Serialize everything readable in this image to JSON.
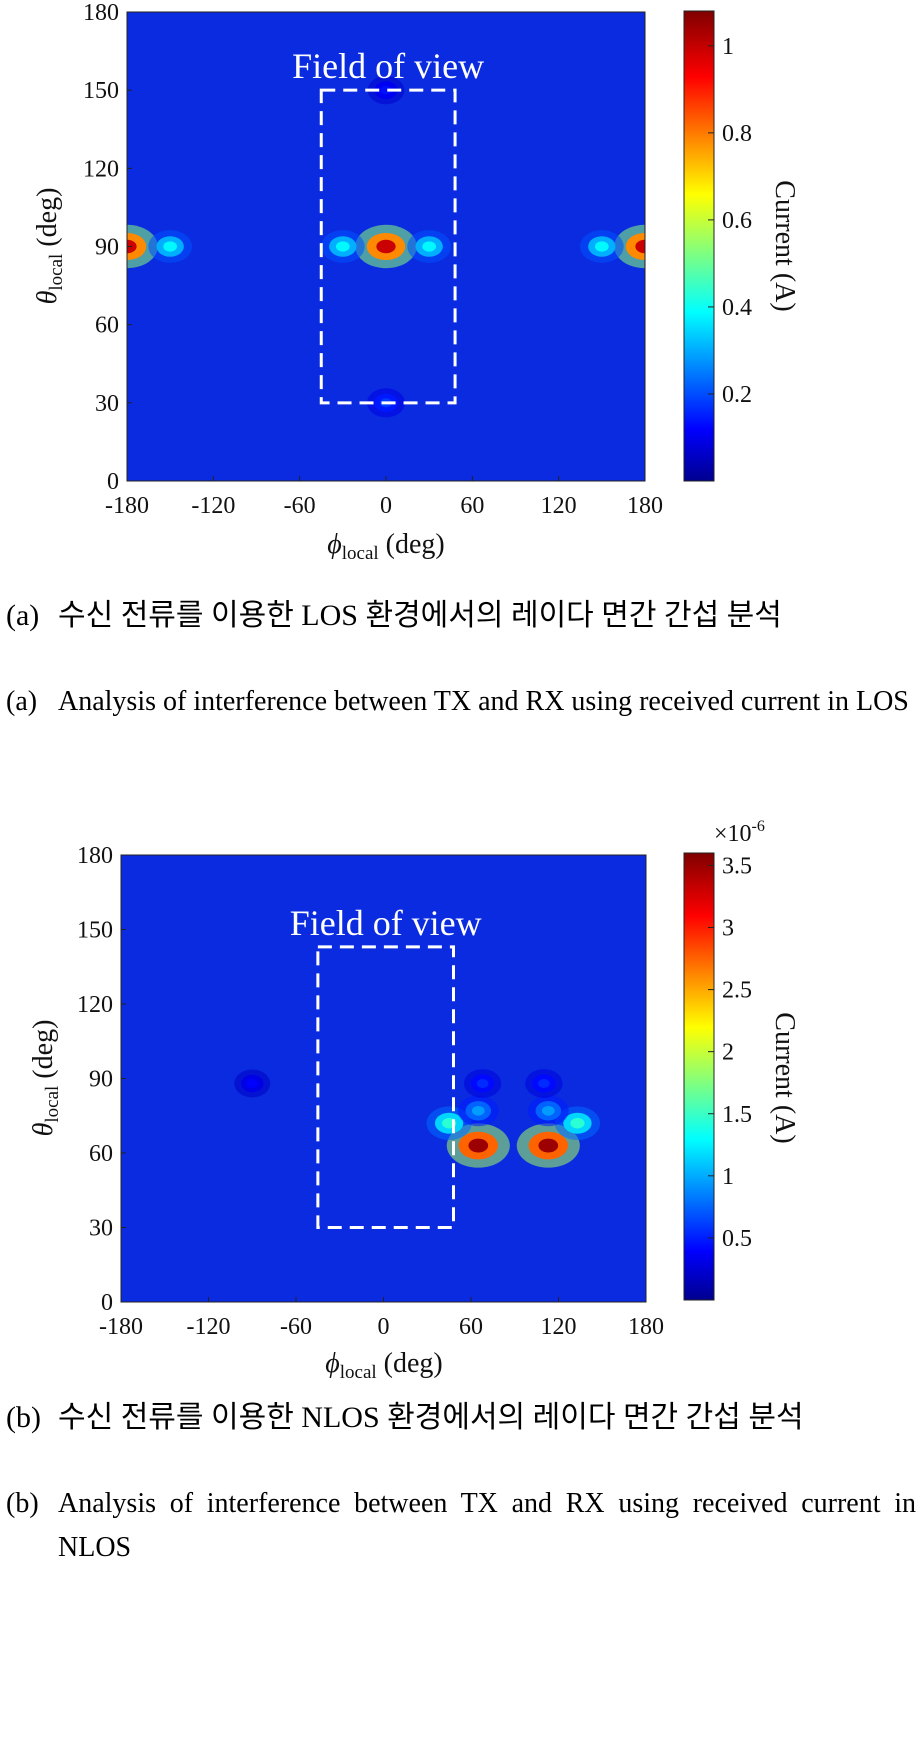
{
  "figures": [
    {
      "id": "a",
      "field_of_view_label": "Field of view",
      "colorbar": {
        "label": "Current (A)",
        "exponent_label": "",
        "ticks": [
          "0.2",
          "0.4",
          "0.6",
          "0.8",
          "1"
        ],
        "min": 0,
        "max": 1.08
      },
      "caption_label": "(a)",
      "caption_ko": "수신 전류를 이용한 LOS 환경에서의 레이다 면간 간섭 분석",
      "caption_en": "Analysis of interference between TX and RX using received current in LOS"
    },
    {
      "id": "b",
      "field_of_view_label": "Field of view",
      "colorbar": {
        "label": "Current (A)",
        "exponent_label": "×10-6",
        "ticks": [
          "0.5",
          "1",
          "1.5",
          "2",
          "2.5",
          "3",
          "3.5"
        ],
        "min": 0,
        "max": 3.6
      },
      "caption_label": "(b)",
      "caption_ko": "수신 전류를 이용한 NLOS 환경에서의 레이다 면간 간섭 분석",
      "caption_en": "Analysis of interference between TX and RX using received current in NLOS"
    }
  ],
  "chart_data": [
    {
      "type": "heatmap",
      "xlabel": "φlocal (deg)",
      "ylabel": "θlocal (deg)",
      "xlim": [
        -180,
        180
      ],
      "ylim": [
        0,
        180
      ],
      "xticks": [
        -180,
        -120,
        -60,
        0,
        60,
        120,
        180
      ],
      "yticks": [
        0,
        30,
        60,
        90,
        120,
        150,
        180
      ],
      "colorbar_label": "Current (A)",
      "color_range": [
        0,
        1.08
      ],
      "field_of_view": {
        "phi": [
          -45,
          48
        ],
        "theta": [
          30,
          150
        ],
        "label": "Field of view"
      },
      "hotspots": [
        {
          "phi": 0,
          "theta": 90,
          "current": 1.0
        },
        {
          "phi": -180,
          "theta": 90,
          "current": 1.0
        },
        {
          "phi": 180,
          "theta": 90,
          "current": 1.0
        },
        {
          "phi": -30,
          "theta": 90,
          "current": 0.4
        },
        {
          "phi": 30,
          "theta": 90,
          "current": 0.4
        },
        {
          "phi": -150,
          "theta": 90,
          "current": 0.4
        },
        {
          "phi": 150,
          "theta": 90,
          "current": 0.4
        },
        {
          "phi": 0,
          "theta": 30,
          "current": 0.2
        },
        {
          "phi": 0,
          "theta": 150,
          "current": 0.15
        }
      ]
    },
    {
      "type": "heatmap",
      "xlabel": "φlocal (deg)",
      "ylabel": "θlocal (deg)",
      "xlim": [
        -180,
        180
      ],
      "ylim": [
        0,
        180
      ],
      "xticks": [
        -180,
        -120,
        -60,
        0,
        60,
        120,
        180
      ],
      "yticks": [
        0,
        30,
        60,
        90,
        120,
        150,
        180
      ],
      "colorbar_label": "Current (A)",
      "colorbar_exponent": "×10^-6",
      "color_range": [
        0,
        3.6e-06
      ],
      "field_of_view": {
        "phi": [
          -45,
          48
        ],
        "theta": [
          30,
          143
        ],
        "label": "Field of view"
      },
      "hotspots": [
        {
          "phi": 65,
          "theta": 63,
          "current": 3.5e-06
        },
        {
          "phi": 113,
          "theta": 63,
          "current": 3.5e-06
        },
        {
          "phi": 45,
          "theta": 72,
          "current": 1.5e-06
        },
        {
          "phi": 133,
          "theta": 72,
          "current": 1.5e-06
        },
        {
          "phi": 65,
          "theta": 77,
          "current": 1e-06
        },
        {
          "phi": 113,
          "theta": 77,
          "current": 1e-06
        },
        {
          "phi": 68,
          "theta": 88,
          "current": 6e-07
        },
        {
          "phi": 110,
          "theta": 88,
          "current": 6e-07
        },
        {
          "phi": -90,
          "theta": 88,
          "current": 4.5e-07
        }
      ]
    }
  ]
}
